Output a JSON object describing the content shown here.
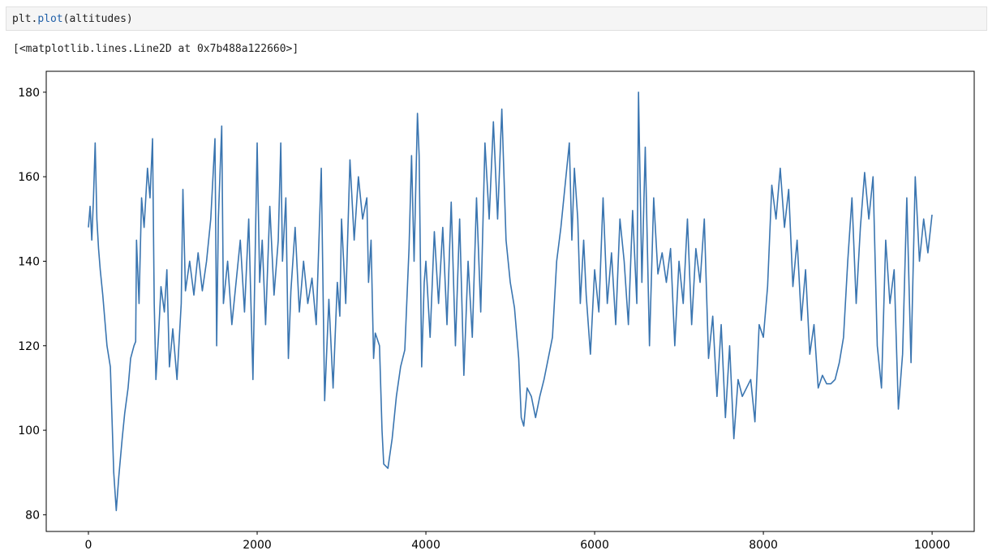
{
  "code": [
    "plt.",
    "plot",
    "(altitudes)"
  ],
  "output": "[<matplotlib.lines.Line2D at 0x7b488a122660>]",
  "chart_data": {
    "type": "line",
    "color": "#3a75b0",
    "xlim": [
      -500,
      10499
    ],
    "ylim": [
      76.05,
      184.95
    ],
    "xticks": [
      0,
      2000,
      4000,
      6000,
      8000,
      10000
    ],
    "yticks": [
      80,
      100,
      120,
      140,
      160,
      180
    ],
    "grid": false,
    "x": [
      0,
      20,
      40,
      60,
      80,
      100,
      120,
      140,
      170,
      220,
      260,
      300,
      330,
      360,
      400,
      430,
      470,
      500,
      540,
      560,
      570,
      600,
      630,
      660,
      700,
      730,
      760,
      780,
      800,
      830,
      860,
      900,
      930,
      960,
      1000,
      1050,
      1100,
      1120,
      1150,
      1200,
      1250,
      1300,
      1350,
      1400,
      1450,
      1500,
      1520,
      1540,
      1580,
      1600,
      1650,
      1700,
      1750,
      1800,
      1850,
      1900,
      1950,
      2000,
      2030,
      2060,
      2100,
      2150,
      2200,
      2250,
      2280,
      2300,
      2340,
      2370,
      2400,
      2450,
      2500,
      2550,
      2600,
      2650,
      2700,
      2760,
      2800,
      2850,
      2900,
      2950,
      2980,
      3000,
      3050,
      3100,
      3150,
      3200,
      3250,
      3300,
      3320,
      3350,
      3380,
      3400,
      3450,
      3480,
      3500,
      3550,
      3600,
      3650,
      3700,
      3750,
      3800,
      3830,
      3860,
      3900,
      3920,
      3950,
      3980,
      4000,
      4050,
      4100,
      4150,
      4200,
      4250,
      4300,
      4350,
      4400,
      4450,
      4500,
      4550,
      4600,
      4650,
      4700,
      4750,
      4800,
      4850,
      4900,
      4950,
      5000,
      5050,
      5100,
      5130,
      5160,
      5200,
      5250,
      5300,
      5350,
      5400,
      5450,
      5500,
      5550,
      5600,
      5650,
      5700,
      5730,
      5760,
      5800,
      5830,
      5870,
      5900,
      5950,
      6000,
      6050,
      6100,
      6150,
      6200,
      6250,
      6300,
      6350,
      6400,
      6450,
      6500,
      6520,
      6560,
      6600,
      6650,
      6700,
      6750,
      6800,
      6850,
      6900,
      6950,
      7000,
      7050,
      7100,
      7150,
      7200,
      7250,
      7300,
      7350,
      7400,
      7450,
      7500,
      7550,
      7600,
      7650,
      7700,
      7750,
      7800,
      7850,
      7900,
      7950,
      8000,
      8050,
      8100,
      8150,
      8200,
      8250,
      8300,
      8350,
      8400,
      8450,
      8500,
      8550,
      8600,
      8650,
      8700,
      8750,
      8800,
      8850,
      8900,
      8950,
      9000,
      9050,
      9100,
      9150,
      9200,
      9250,
      9300,
      9350,
      9400,
      9450,
      9500,
      9550,
      9600,
      9650,
      9700,
      9750,
      9800,
      9850,
      9900,
      9950,
      9999
    ],
    "values": [
      148,
      153,
      145,
      155,
      168,
      150,
      143,
      138,
      132,
      120,
      115,
      90,
      81,
      89,
      98,
      104,
      110,
      117,
      120,
      121,
      145,
      130,
      155,
      148,
      162,
      155,
      169,
      130,
      112,
      122,
      134,
      128,
      138,
      115,
      124,
      112,
      130,
      157,
      133,
      140,
      132,
      142,
      133,
      140,
      150,
      169,
      120,
      150,
      172,
      130,
      140,
      125,
      135,
      145,
      128,
      150,
      112,
      168,
      135,
      145,
      125,
      153,
      132,
      145,
      168,
      140,
      155,
      117,
      133,
      148,
      128,
      140,
      130,
      136,
      125,
      162,
      107,
      131,
      110,
      135,
      127,
      150,
      130,
      164,
      145,
      160,
      150,
      155,
      135,
      145,
      117,
      123,
      120,
      100,
      92,
      91,
      98,
      108,
      115,
      119,
      143,
      165,
      140,
      175,
      165,
      115,
      135,
      140,
      122,
      147,
      130,
      148,
      125,
      154,
      120,
      150,
      113,
      140,
      122,
      155,
      128,
      168,
      150,
      173,
      150,
      176,
      145,
      135,
      129,
      117,
      103,
      101,
      110,
      108,
      103,
      108,
      112,
      117,
      122,
      140,
      148,
      158,
      168,
      145,
      162,
      150,
      130,
      145,
      132,
      118,
      138,
      128,
      155,
      130,
      142,
      125,
      150,
      140,
      125,
      152,
      130,
      180,
      135,
      167,
      120,
      155,
      137,
      142,
      135,
      143,
      120,
      140,
      130,
      150,
      125,
      143,
      135,
      150,
      117,
      127,
      108,
      125,
      103,
      120,
      98,
      112,
      108,
      110,
      112,
      102,
      125,
      122,
      134,
      158,
      150,
      162,
      148,
      157,
      134,
      145,
      126,
      138,
      118,
      125,
      110,
      113,
      111,
      111,
      112,
      116,
      122,
      140,
      155,
      130,
      148,
      161,
      150,
      160,
      120,
      110,
      145,
      130,
      138,
      105,
      118,
      155,
      116,
      160,
      140,
      150,
      142,
      151
    ]
  }
}
